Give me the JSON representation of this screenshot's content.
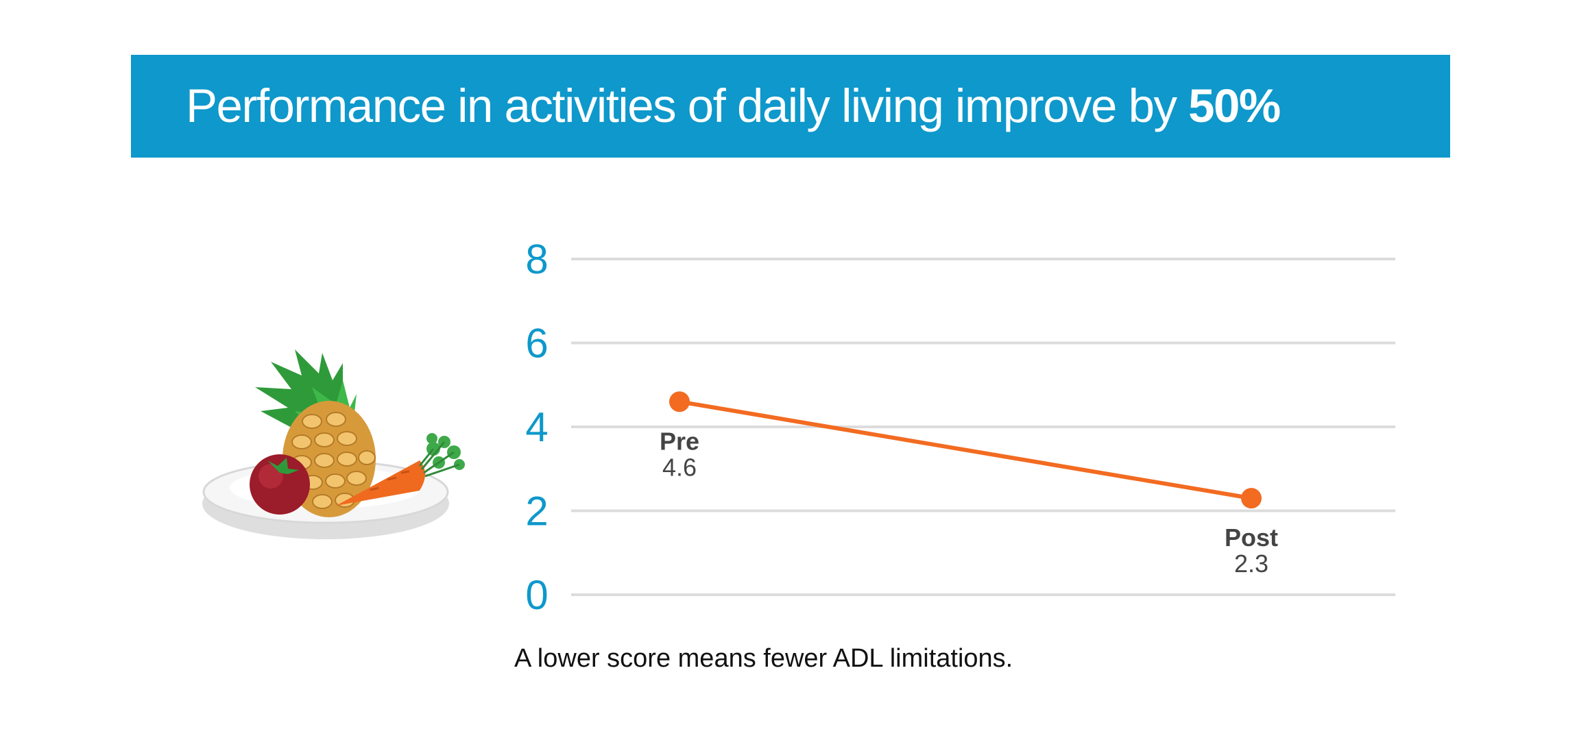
{
  "banner": {
    "title_text": "Performance in activities of daily living improve by ",
    "title_emphasis": "50%",
    "color": "#0e98cb"
  },
  "illustration": {
    "icon": "fruit-plate-icon"
  },
  "chart_data": {
    "type": "line",
    "categories": [
      "Pre",
      "Post"
    ],
    "values": [
      4.6,
      2.3
    ],
    "value_labels": [
      "4.6",
      "2.3"
    ],
    "yticks": [
      0,
      2,
      4,
      6,
      8
    ],
    "ylim": [
      0,
      8
    ],
    "grid": true,
    "line_color": "#f26b21",
    "axis_color": "#0e98cb"
  },
  "note": "A lower score means fewer ADL limitations."
}
